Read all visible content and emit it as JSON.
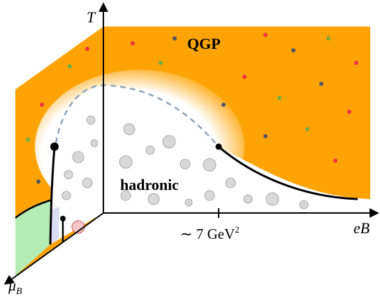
{
  "axes": {
    "vertical": "T",
    "horizontal": "eB",
    "depth": "μ",
    "depth_sub": "B"
  },
  "regions": {
    "deconfined": "QGP",
    "confined": "hadronic"
  },
  "tick": {
    "label": "∼ 7 GeV",
    "sup": "2"
  }
}
